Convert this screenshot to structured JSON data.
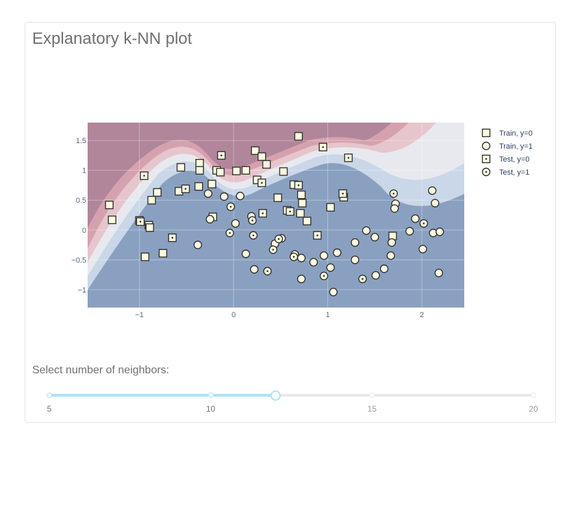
{
  "title": "Explanatory k-NN plot",
  "slider": {
    "label": "Select number of neighbors:",
    "min": 5,
    "max": 20,
    "value": 12,
    "marks": [
      "5",
      "10",
      "15",
      "20"
    ]
  },
  "chart_data": {
    "type": "scatter",
    "xlim": [
      -1.55,
      2.45
    ],
    "ylim": [
      -1.3,
      1.8
    ],
    "xticks": [
      "−1",
      "0",
      "1",
      "2"
    ],
    "xtick_values": [
      -1,
      0,
      1,
      2
    ],
    "yticks": [
      "1.5",
      "1",
      "0.5",
      "0",
      "−0.5",
      "−1"
    ],
    "ytick_values": [
      1.5,
      1,
      0.5,
      0,
      -0.5,
      -1
    ],
    "grid": true,
    "legend_position": "right",
    "background": "decision-surface contour (red = class 0, blue = class 1)",
    "colors": {
      "class0_dark": "#b1859a",
      "class1_dark": "#8aa0c0",
      "marker_fill": "#fdfbe0",
      "marker_edge": "#333333"
    },
    "series": [
      {
        "name": "Train, y=0",
        "marker": "square",
        "points": [
          [
            0.69,
            1.57
          ],
          [
            0.23,
            1.33
          ],
          [
            0.3,
            1.23
          ],
          [
            0.35,
            1.1
          ],
          [
            -0.56,
            1.05
          ],
          [
            -0.36,
            1.12
          ],
          [
            -0.36,
            1.0
          ],
          [
            -0.18,
            1.0
          ],
          [
            -0.14,
            0.97
          ],
          [
            0.03,
            0.99
          ],
          [
            0.13,
            1.0
          ],
          [
            0.53,
            0.98
          ],
          [
            0.25,
            0.84
          ],
          [
            -0.37,
            0.73
          ],
          [
            -0.23,
            0.77
          ],
          [
            -0.58,
            0.65
          ],
          [
            -0.81,
            0.63
          ],
          [
            -0.87,
            0.5
          ],
          [
            -1.32,
            0.42
          ],
          [
            -1.29,
            0.17
          ],
          [
            -1.0,
            0.16
          ],
          [
            -0.9,
            0.08
          ],
          [
            -0.89,
            0.04
          ],
          [
            -0.94,
            -0.45
          ],
          [
            -0.75,
            -0.39
          ],
          [
            0.47,
            0.54
          ],
          [
            0.64,
            0.76
          ],
          [
            0.72,
            0.59
          ],
          [
            0.73,
            0.45
          ],
          [
            0.57,
            0.33
          ],
          [
            0.71,
            0.28
          ],
          [
            0.78,
            0.15
          ],
          [
            1.03,
            0.38
          ],
          [
            1.17,
            0.55
          ],
          [
            1.69,
            -0.1
          ],
          [
            -0.22,
            0.22
          ]
        ]
      },
      {
        "name": "Train, y=1",
        "marker": "circle",
        "points": [
          [
            -0.38,
            -0.25
          ],
          [
            -0.27,
            0.61
          ],
          [
            -0.1,
            0.56
          ],
          [
            0.07,
            0.57
          ],
          [
            -0.25,
            0.18
          ],
          [
            0.02,
            0.11
          ],
          [
            0.19,
            0.23
          ],
          [
            0.13,
            -0.4
          ],
          [
            0.22,
            -0.66
          ],
          [
            0.44,
            -0.23
          ],
          [
            0.51,
            -0.14
          ],
          [
            0.65,
            -0.41
          ],
          [
            0.72,
            -0.47
          ],
          [
            0.72,
            -0.82
          ],
          [
            0.85,
            -0.54
          ],
          [
            0.96,
            -0.43
          ],
          [
            1.03,
            -0.63
          ],
          [
            1.1,
            -0.38
          ],
          [
            1.06,
            -1.04
          ],
          [
            1.29,
            -0.21
          ],
          [
            1.29,
            -0.5
          ],
          [
            1.41,
            -0.01
          ],
          [
            1.5,
            -0.12
          ],
          [
            1.51,
            -0.76
          ],
          [
            1.6,
            -0.65
          ],
          [
            1.67,
            -0.43
          ],
          [
            1.68,
            -0.21
          ],
          [
            1.72,
            0.44
          ],
          [
            1.71,
            0.36
          ],
          [
            1.87,
            -0.02
          ],
          [
            1.93,
            0.19
          ],
          [
            2.01,
            -0.32
          ],
          [
            2.11,
            0.66
          ],
          [
            2.14,
            0.45
          ],
          [
            2.12,
            -0.05
          ],
          [
            2.19,
            -0.03
          ],
          [
            2.18,
            -0.72
          ]
        ]
      },
      {
        "name": "Test, y=0",
        "marker": "square-dot",
        "points": [
          [
            -0.95,
            0.91
          ],
          [
            -0.51,
            0.69
          ],
          [
            -0.99,
            0.14
          ],
          [
            -0.65,
            -0.13
          ],
          [
            -0.13,
            1.25
          ],
          [
            0.3,
            0.79
          ],
          [
            0.31,
            0.28
          ],
          [
            0.6,
            0.31
          ],
          [
            0.69,
            0.75
          ],
          [
            0.95,
            1.39
          ],
          [
            1.22,
            1.21
          ],
          [
            0.89,
            -0.09
          ],
          [
            1.16,
            0.61
          ]
        ]
      },
      {
        "name": "Test, y=1",
        "marker": "circle-dot",
        "points": [
          [
            -0.04,
            -0.05
          ],
          [
            -0.03,
            0.39
          ],
          [
            0.2,
            0.16
          ],
          [
            0.21,
            -0.09
          ],
          [
            0.42,
            -0.33
          ],
          [
            0.48,
            -0.15
          ],
          [
            0.64,
            -0.45
          ],
          [
            0.36,
            -0.69
          ],
          [
            0.96,
            -0.77
          ],
          [
            1.37,
            -0.82
          ],
          [
            1.7,
            0.61
          ],
          [
            2.02,
            0.11
          ]
        ]
      }
    ]
  }
}
